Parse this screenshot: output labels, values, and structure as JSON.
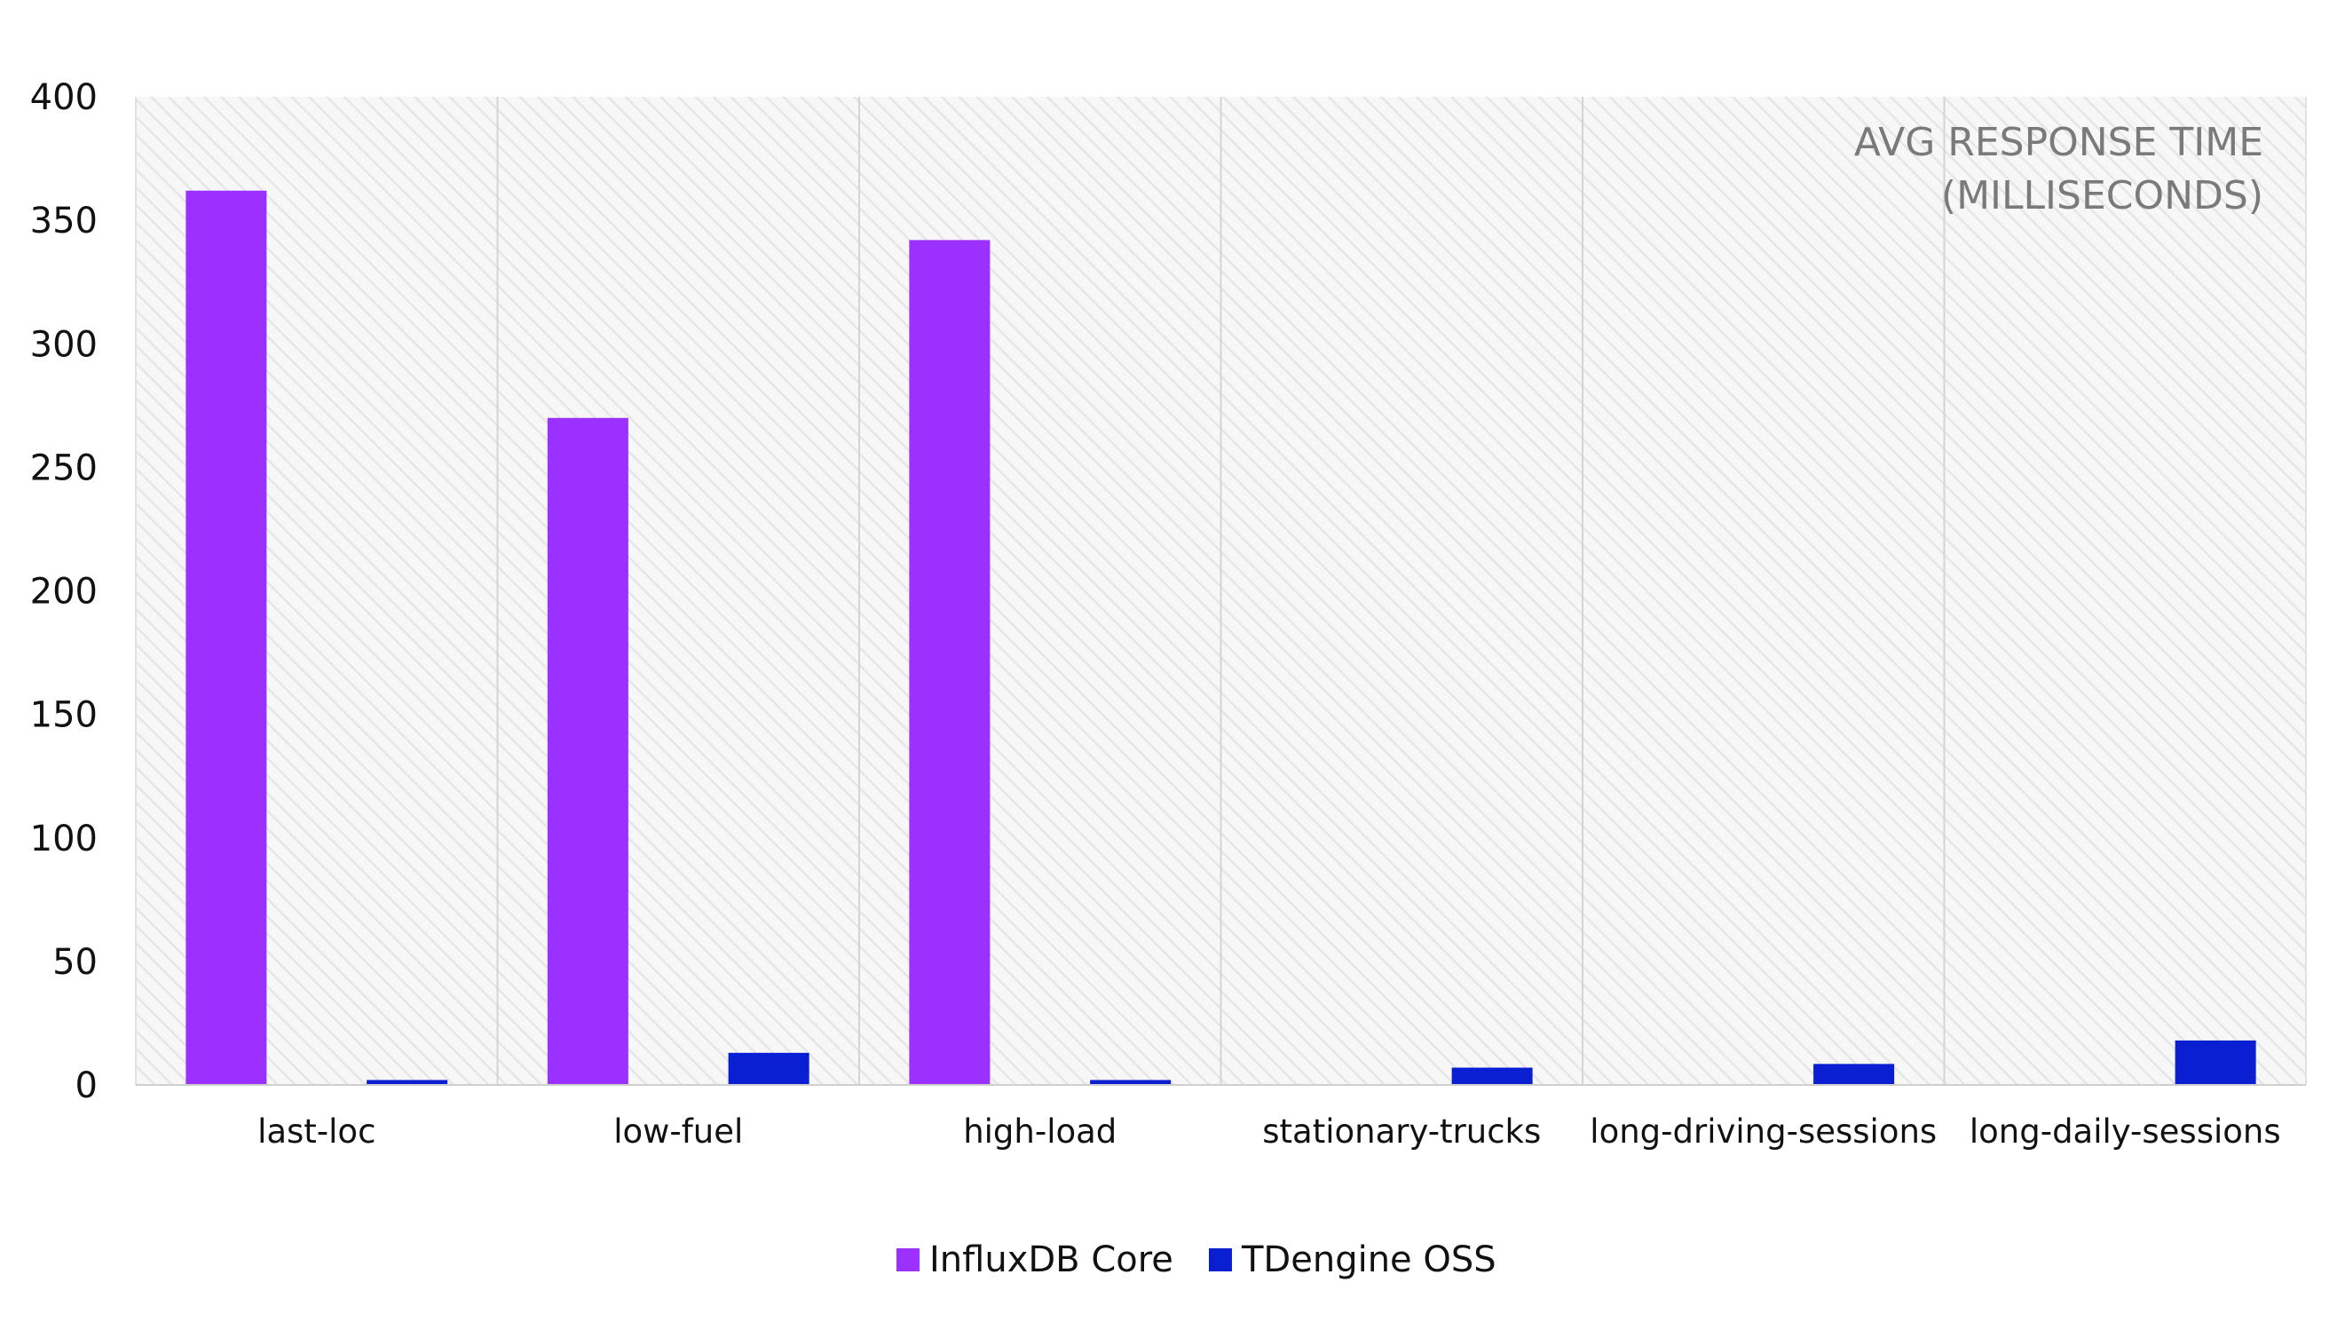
{
  "chart_data": {
    "type": "bar",
    "annotation": [
      "AVG RESPONSE TIME",
      "(MILLISECONDS)"
    ],
    "categories": [
      "last-loc",
      "low-fuel",
      "high-load",
      "stationary-trucks",
      "long-driving-sessions",
      "long-daily-sessions"
    ],
    "series": [
      {
        "name": "InfluxDB Core",
        "values": [
          362,
          270,
          342,
          null,
          null,
          null
        ],
        "color": "#9b30ff"
      },
      {
        "name": "TDengine OSS",
        "values": [
          2,
          13,
          2,
          7,
          8.5,
          18
        ],
        "color": "#0a1ed2"
      }
    ],
    "ylim": [
      0,
      400
    ],
    "yticks": [
      0,
      50,
      100,
      150,
      200,
      250,
      300,
      350,
      400
    ],
    "grid": "vertical category separators",
    "legend": "bottom-center",
    "colors": {
      "plot_background": "#f7f7f7",
      "hatch": "#e8e8e8",
      "separator": "#d4d4d4",
      "annotation": "#7a7a7a"
    }
  }
}
